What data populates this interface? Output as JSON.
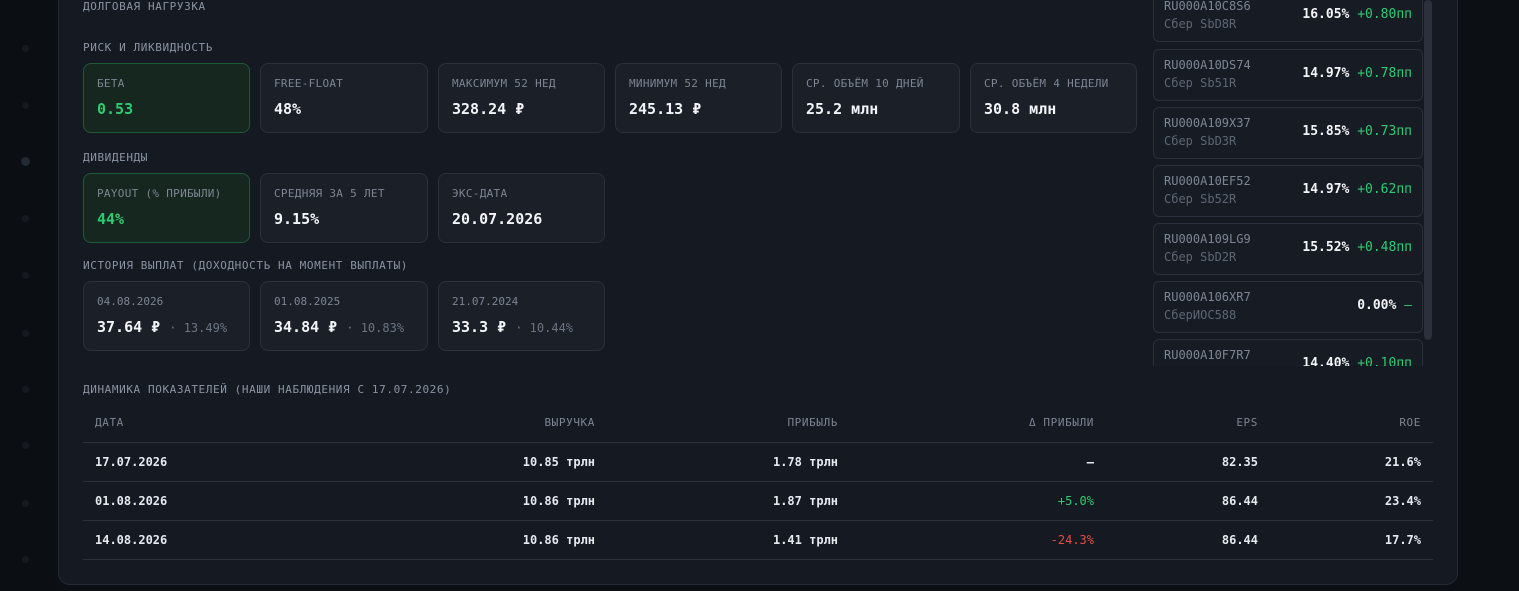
{
  "sections": {
    "debt": "ДОЛГОВАЯ НАГРУЗКА",
    "risk": "РИСК И ЛИКВИДНОСТЬ",
    "dividends": "ДИВИДЕНДЫ",
    "history": "ИСТОРИЯ ВЫПЛАТ (ДОХОДНОСТЬ НА МОМЕНТ ВЫПЛАТЫ)",
    "dynamics": "ДИНАМИКА ПОКАЗАТЕЛЕЙ (НАШИ НАБЛЮДЕНИЯ С 17.07.2026)"
  },
  "risk_cards": [
    {
      "label": "БЕТА",
      "value": "0.53",
      "highlight": true
    },
    {
      "label": "FREE-FLOAT",
      "value": "48%"
    },
    {
      "label": "МАКСИМУМ 52 НЕД",
      "value": "328.24 ₽"
    },
    {
      "label": "МИНИМУМ 52 НЕД",
      "value": "245.13 ₽"
    },
    {
      "label": "СР. ОБЪЁМ 10 ДНЕЙ",
      "value": "25.2 млн"
    },
    {
      "label": "СР. ОБЪЁМ 4 НЕДЕЛИ",
      "value": "30.8 млн"
    }
  ],
  "dividend_cards": [
    {
      "label": "PAYOUT (% ПРИБЫЛИ)",
      "value": "44%",
      "highlight": true
    },
    {
      "label": "СРЕДНЯЯ ЗА 5 ЛЕТ",
      "value": "9.15%"
    },
    {
      "label": "ЭКС-ДАТА",
      "value": "20.07.2026"
    }
  ],
  "history_cards": [
    {
      "date": "04.08.2026",
      "amount": "37.64 ₽",
      "yield": "· 13.49%"
    },
    {
      "date": "01.08.2025",
      "amount": "34.84 ₽",
      "yield": "· 10.83%"
    },
    {
      "date": "21.07.2024",
      "amount": "33.3 ₽",
      "yield": "· 10.44%"
    }
  ],
  "bonds": [
    {
      "isin": "RU000A10C8S6",
      "name": "Сбер SbD8R",
      "yield": "16.05%",
      "delta": "+0.80пп"
    },
    {
      "isin": "RU000A10DS74",
      "name": "Сбер Sb51R",
      "yield": "14.97%",
      "delta": "+0.78пп"
    },
    {
      "isin": "RU000A109X37",
      "name": "Сбер SbD3R",
      "yield": "15.85%",
      "delta": "+0.73пп"
    },
    {
      "isin": "RU000A10EF52",
      "name": "Сбер Sb52R",
      "yield": "14.97%",
      "delta": "+0.62пп"
    },
    {
      "isin": "RU000A109LG9",
      "name": "Сбер SbD2R",
      "yield": "15.52%",
      "delta": "+0.48пп"
    },
    {
      "isin": "RU000A106XR7",
      "name": "СберИОС588",
      "yield": "0.00%",
      "delta": "—"
    },
    {
      "isin": "RU000A10F7R7",
      "name": "",
      "yield": "14.40%",
      "delta": "+0.10пп"
    }
  ],
  "table": {
    "headers": [
      "ДАТА",
      "ВЫРУЧКА",
      "ПРИБЫЛЬ",
      "Δ ПРИБЫЛИ",
      "EPS",
      "ROE"
    ],
    "rows": [
      {
        "date": "17.07.2026",
        "revenue": "10.85 трлн",
        "profit": "1.78 трлн",
        "delta": "—",
        "eps": "82.35",
        "roe": "21.6%"
      },
      {
        "date": "01.08.2026",
        "revenue": "10.86 трлн",
        "profit": "1.87 трлн",
        "delta": "+5.0%",
        "eps": "86.44",
        "roe": "23.4%"
      },
      {
        "date": "14.08.2026",
        "revenue": "10.86 трлн",
        "profit": "1.41 трлн",
        "delta": "-24.3%",
        "eps": "86.44",
        "roe": "17.7%"
      }
    ]
  }
}
